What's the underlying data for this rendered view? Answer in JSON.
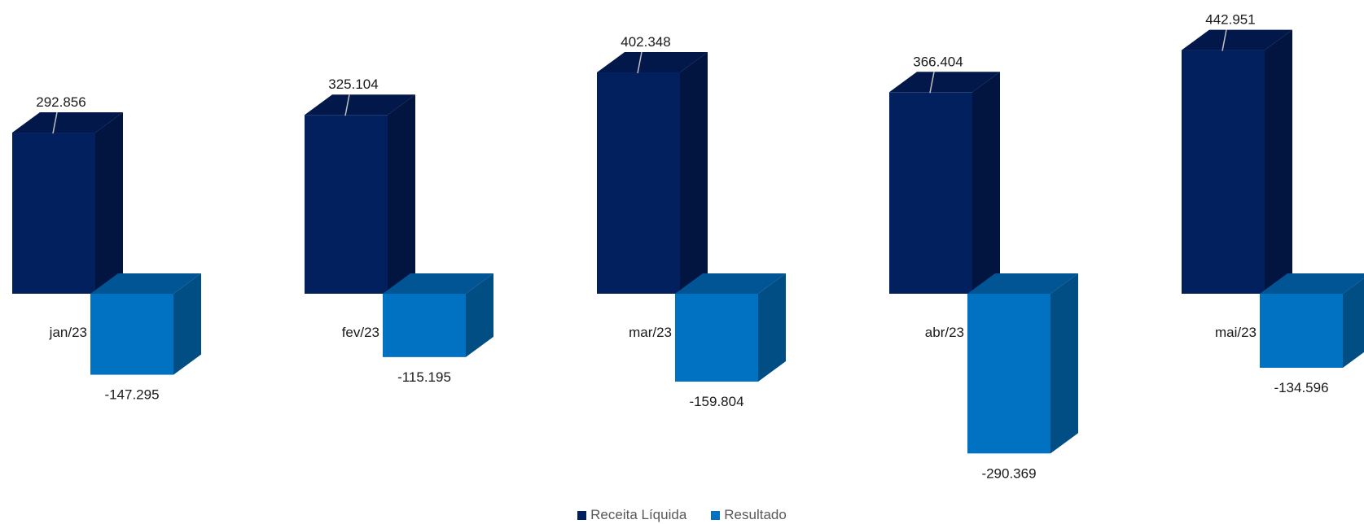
{
  "chart_data": {
    "type": "bar",
    "subtype": "3d-clustered-column",
    "categories": [
      "jan/23",
      "fev/23",
      "mar/23",
      "abr/23",
      "mai/23"
    ],
    "series": [
      {
        "name": "Receita Líquida",
        "values": [
          292856,
          325104,
          402348,
          366404,
          442951
        ],
        "labels": [
          "292.856",
          "325.104",
          "402.348",
          "366.404",
          "442.951"
        ],
        "color": "#02205e",
        "side_color": "#011540",
        "top_color": "#03184a"
      },
      {
        "name": "Resultado",
        "values": [
          -147295,
          -115195,
          -159804,
          -290369,
          -134596
        ],
        "labels": [
          "-147.295",
          "-115.195",
          "-159.804",
          "-290.369",
          "-134.596"
        ],
        "color": "#0171c2",
        "side_color": "#014e85",
        "top_color": "#025594"
      }
    ],
    "legend_position": "bottom",
    "grid": false
  }
}
